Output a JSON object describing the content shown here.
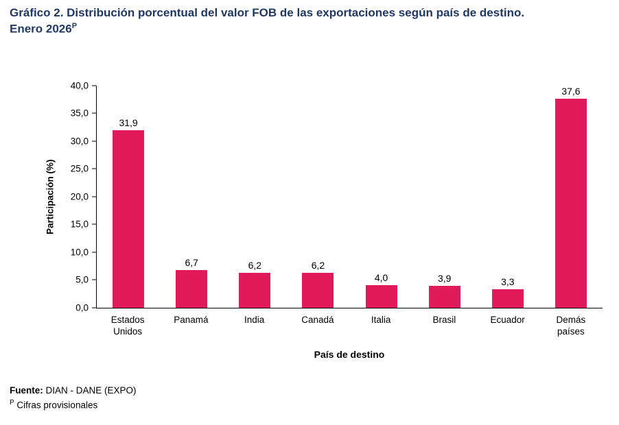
{
  "header": {
    "title_line1": "Gráfico 2. Distribución porcentual del valor FOB de las exportaciones según país de destino.",
    "title_line2": "Enero 2026",
    "title_superscript": "P"
  },
  "colors": {
    "title": "#1f3864",
    "bar": "#e11a5c",
    "axis": "#000000"
  },
  "chart_data": {
    "type": "bar",
    "categories": [
      "Estados\nUnidos",
      "Panamá",
      "India",
      "Canadá",
      "Italia",
      "Brasil",
      "Ecuador",
      "Demás\npaíses"
    ],
    "values": [
      31.9,
      6.7,
      6.2,
      6.2,
      4.0,
      3.9,
      3.3,
      37.6
    ],
    "value_labels": [
      "31,9",
      "6,7",
      "6,2",
      "6,2",
      "4,0",
      "3,9",
      "3,3",
      "37,6"
    ],
    "title": "Gráfico 2. Distribución porcentual del valor FOB de las exportaciones según país de destino. Enero 2026P",
    "xlabel": "País de destino",
    "ylabel": "Participación (%)",
    "ylim": [
      0,
      40
    ],
    "y_ticks": [
      "0,0",
      "5,0",
      "10,0",
      "15,0",
      "20,0",
      "25,0",
      "30,0",
      "35,0",
      "40,0"
    ],
    "bar_color": "#e11a5c",
    "grid": false,
    "legend": "none"
  },
  "footer": {
    "source_label": "Fuente:",
    "source_text": " DIAN - DANE (EXPO)",
    "note_superscript": "P",
    "note_text": " Cifras provisionales"
  }
}
